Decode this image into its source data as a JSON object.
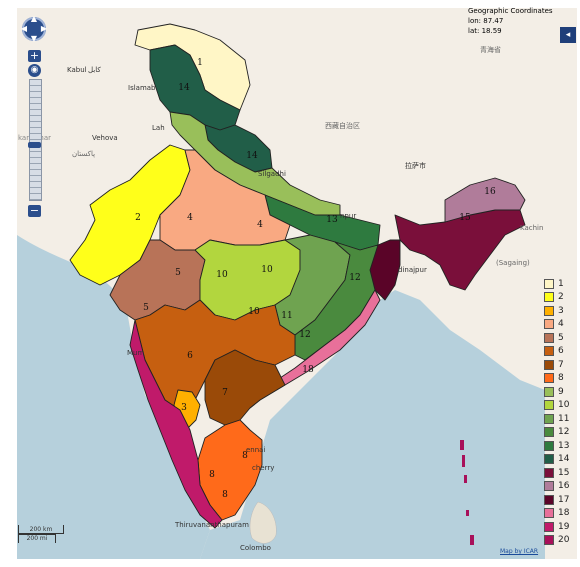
{
  "coordinates": {
    "title": "Geographic Coordinates",
    "lon": "lon: 87.47",
    "lat": "lat: 18.59"
  },
  "controls": {
    "zoom_in": "+",
    "zoom_out": "−",
    "layer_switcher": "◂"
  },
  "scale": {
    "km": "200 km",
    "mi": "200 mi"
  },
  "attribution": "Map by ICAR",
  "place_labels": {
    "kabul": "Kabul",
    "kabul_native": "کابل",
    "islamabad": "Islamab",
    "lahore": "Lah",
    "vehova": "Vehova",
    "kandahar": "kandahar",
    "baluchistan": "پاکستان",
    "tibet": "西藏自治区",
    "qinghai": "青海省",
    "lhasa": "拉萨市",
    "silgadhi": "Silgadhi",
    "kachin": "Kachin",
    "sagaing": "(Sagaing)",
    "mumbai": "Mum",
    "chennai": "ennai",
    "pondicherry": "cherry",
    "colombo": "Colombo",
    "thiruvananthapuram": "Thiruvananthapuram",
    "dinajpur": "dinajpur",
    "kanpur": "npur"
  },
  "zone_labels": [
    {
      "id": "z1",
      "text": "1"
    },
    {
      "id": "z14a",
      "text": "14"
    },
    {
      "id": "z14b",
      "text": "14"
    },
    {
      "id": "z2",
      "text": "2"
    },
    {
      "id": "z4a",
      "text": "4"
    },
    {
      "id": "z4b",
      "text": "4"
    },
    {
      "id": "z13",
      "text": "13"
    },
    {
      "id": "z16",
      "text": "16"
    },
    {
      "id": "z15",
      "text": "15"
    },
    {
      "id": "z10a",
      "text": "10"
    },
    {
      "id": "z10b",
      "text": "10"
    },
    {
      "id": "z10c",
      "text": "10"
    },
    {
      "id": "z5a",
      "text": "5"
    },
    {
      "id": "z5b",
      "text": "5"
    },
    {
      "id": "z11",
      "text": "11"
    },
    {
      "id": "z12a",
      "text": "12"
    },
    {
      "id": "z12b",
      "text": "12"
    },
    {
      "id": "z6",
      "text": "6"
    },
    {
      "id": "z7",
      "text": "7"
    },
    {
      "id": "z3",
      "text": "3"
    },
    {
      "id": "z8a",
      "text": "8"
    },
    {
      "id": "z8b",
      "text": "8"
    },
    {
      "id": "z8c",
      "text": "8"
    },
    {
      "id": "z18",
      "text": "18"
    }
  ],
  "legend": [
    {
      "label": "1",
      "color": "#fff6c6"
    },
    {
      "label": "2",
      "color": "#ffff1a"
    },
    {
      "label": "3",
      "color": "#ffb000"
    },
    {
      "label": "4",
      "color": "#f9a982"
    },
    {
      "label": "5",
      "color": "#b87358"
    },
    {
      "label": "6",
      "color": "#c65f10"
    },
    {
      "label": "7",
      "color": "#9a4a08"
    },
    {
      "label": "8",
      "color": "#ff6a1a"
    },
    {
      "label": "9",
      "color": "#99bf5a"
    },
    {
      "label": "10",
      "color": "#b2d63e"
    },
    {
      "label": "11",
      "color": "#6fa350"
    },
    {
      "label": "12",
      "color": "#4a8a3e"
    },
    {
      "label": "13",
      "color": "#2e7a3f"
    },
    {
      "label": "14",
      "color": "#215e48"
    },
    {
      "label": "15",
      "color": "#7a0f3a"
    },
    {
      "label": "16",
      "color": "#b07c9a"
    },
    {
      "label": "17",
      "color": "#5a0428"
    },
    {
      "label": "18",
      "color": "#e8709a"
    },
    {
      "label": "19",
      "color": "#c01a6a"
    },
    {
      "label": "20",
      "color": "#a8105a"
    }
  ]
}
